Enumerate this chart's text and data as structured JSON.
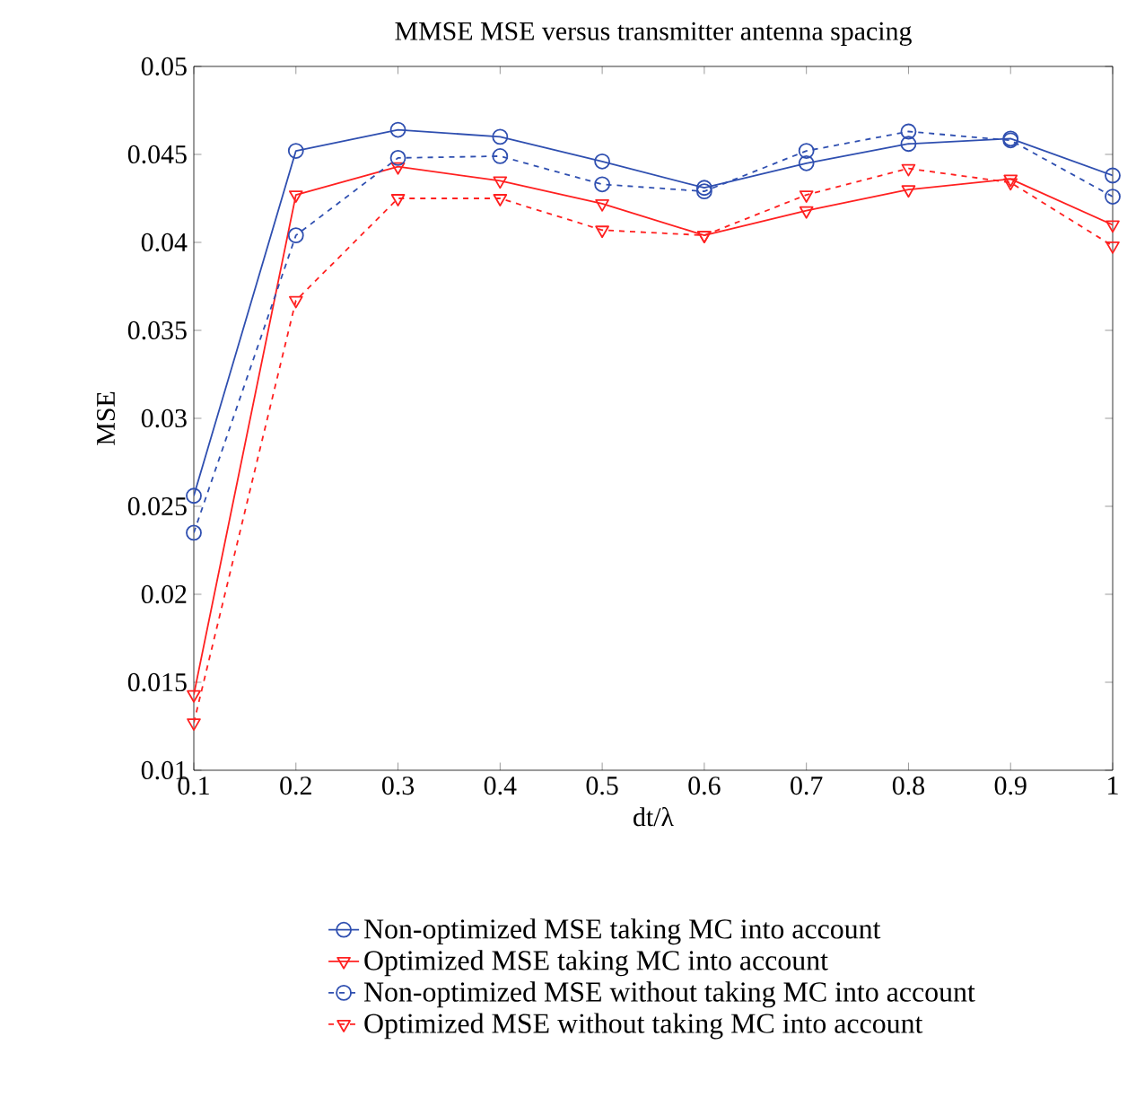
{
  "chart_data": {
    "type": "line",
    "title": "MMSE MSE versus transmitter antenna spacing",
    "xlabel": "dt/λ",
    "ylabel": "MSE",
    "x": [
      0.1,
      0.2,
      0.3,
      0.4,
      0.5,
      0.6,
      0.7,
      0.8,
      0.9,
      1.0
    ],
    "series": [
      {
        "name": "Non-optimized MSE taking MC into account",
        "color": "#2f4fb0",
        "marker": "circle",
        "line_style": "solid",
        "values": [
          0.0256,
          0.0452,
          0.0464,
          0.046,
          0.0446,
          0.0431,
          0.0445,
          0.0456,
          0.0459,
          0.0438
        ]
      },
      {
        "name": "Optimized MSE taking MC into account",
        "color": "#ff2020",
        "marker": "triangle",
        "line_style": "solid",
        "values": [
          0.0143,
          0.0427,
          0.0443,
          0.0435,
          0.0422,
          0.0404,
          0.0418,
          0.043,
          0.0436,
          0.041
        ]
      },
      {
        "name": "Non-optimized MSE without taking MC into account",
        "color": "#2f4fb0",
        "marker": "circle",
        "line_style": "dashed",
        "values": [
          0.0235,
          0.0404,
          0.0448,
          0.0449,
          0.0433,
          0.0429,
          0.0452,
          0.0463,
          0.0458,
          0.0426
        ]
      },
      {
        "name": "Optimized MSE without taking MC into account",
        "color": "#ff2020",
        "marker": "triangle",
        "line_style": "dashed",
        "values": [
          0.0127,
          0.0367,
          0.0425,
          0.0425,
          0.0407,
          0.0404,
          0.0427,
          0.0442,
          0.0434,
          0.0398
        ]
      }
    ],
    "xlim": [
      0.1,
      1.0
    ],
    "ylim": [
      0.01,
      0.05
    ],
    "xticks": [
      0.1,
      0.2,
      0.3,
      0.4,
      0.5,
      0.6,
      0.7,
      0.8,
      0.9,
      1
    ],
    "yticks": [
      0.01,
      0.015,
      0.02,
      0.025,
      0.03,
      0.035,
      0.04,
      0.045,
      0.05
    ],
    "grid": false,
    "legend": "bottom"
  }
}
